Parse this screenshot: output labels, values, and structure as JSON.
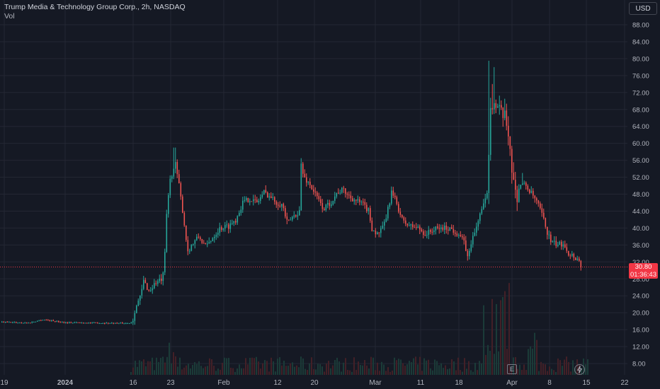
{
  "legend": {
    "title": "Trump Media & Technology Group Corp., 2h, NASDAQ",
    "volume_label": "Vol"
  },
  "currency_button": "USD",
  "last_price": {
    "value": "30.80",
    "countdown": "01:36:43",
    "value_num": 30.8
  },
  "colors": {
    "background": "#151924",
    "up": "#26a69a",
    "down": "#ef5350",
    "grid": "#242733",
    "text": "#d1d4dc",
    "price_line": "#f23645"
  },
  "icons": {
    "events": "E",
    "events_icon": "e-square-icon",
    "lightning_icon": "lightning-icon"
  },
  "chart_data": {
    "type": "candlestick",
    "symbol": "Trump Media & Technology Group Corp.",
    "interval": "2h",
    "exchange": "NASDAQ",
    "y_axis": {
      "position": "right",
      "ticks": [
        "88.00",
        "84.00",
        "80.00",
        "76.00",
        "72.00",
        "68.00",
        "64.00",
        "60.00",
        "56.00",
        "52.00",
        "48.00",
        "44.00",
        "40.00",
        "36.00",
        "32.00",
        "28.00",
        "24.00",
        "20.00",
        "16.00",
        "12.00",
        "8.00"
      ],
      "range": [
        6.7,
        92.3
      ]
    },
    "x_axis": {
      "ticks": [
        "19",
        "2024",
        "16",
        "23",
        "Feb",
        "12",
        "20",
        "Mar",
        "11",
        "18",
        "Apr",
        "8",
        "15",
        "22"
      ]
    },
    "grid": true,
    "segments": [
      {
        "period": "Dec 19 - Jan 17",
        "level": 17.8,
        "low": 17.0,
        "high": 18.3
      },
      {
        "period": "Jan 18 - Jan 23",
        "open": 17.5,
        "close": 28.0,
        "low": 17.2,
        "high": 29.0
      },
      {
        "period": "Jan 23",
        "open": 28.0,
        "close": 55.0,
        "low": 27.0,
        "high": 59.0
      },
      {
        "period": "Jan 24 - Mar 1",
        "low": 32.5,
        "high": 56.5
      },
      {
        "period": "Mar 1 - Mar 22",
        "low": 32.0,
        "high": 52.0
      },
      {
        "period": "Mar 26",
        "open": 52.0,
        "close": 72.0,
        "low": 51.0,
        "high": 79.5
      },
      {
        "period": "Mar 27 - Apr 12",
        "open": 70.0,
        "close": 30.8,
        "low": 30.5,
        "high": 70.0
      }
    ],
    "volume_panel": {
      "label": "Vol",
      "peak_near": "Mar 26"
    }
  }
}
